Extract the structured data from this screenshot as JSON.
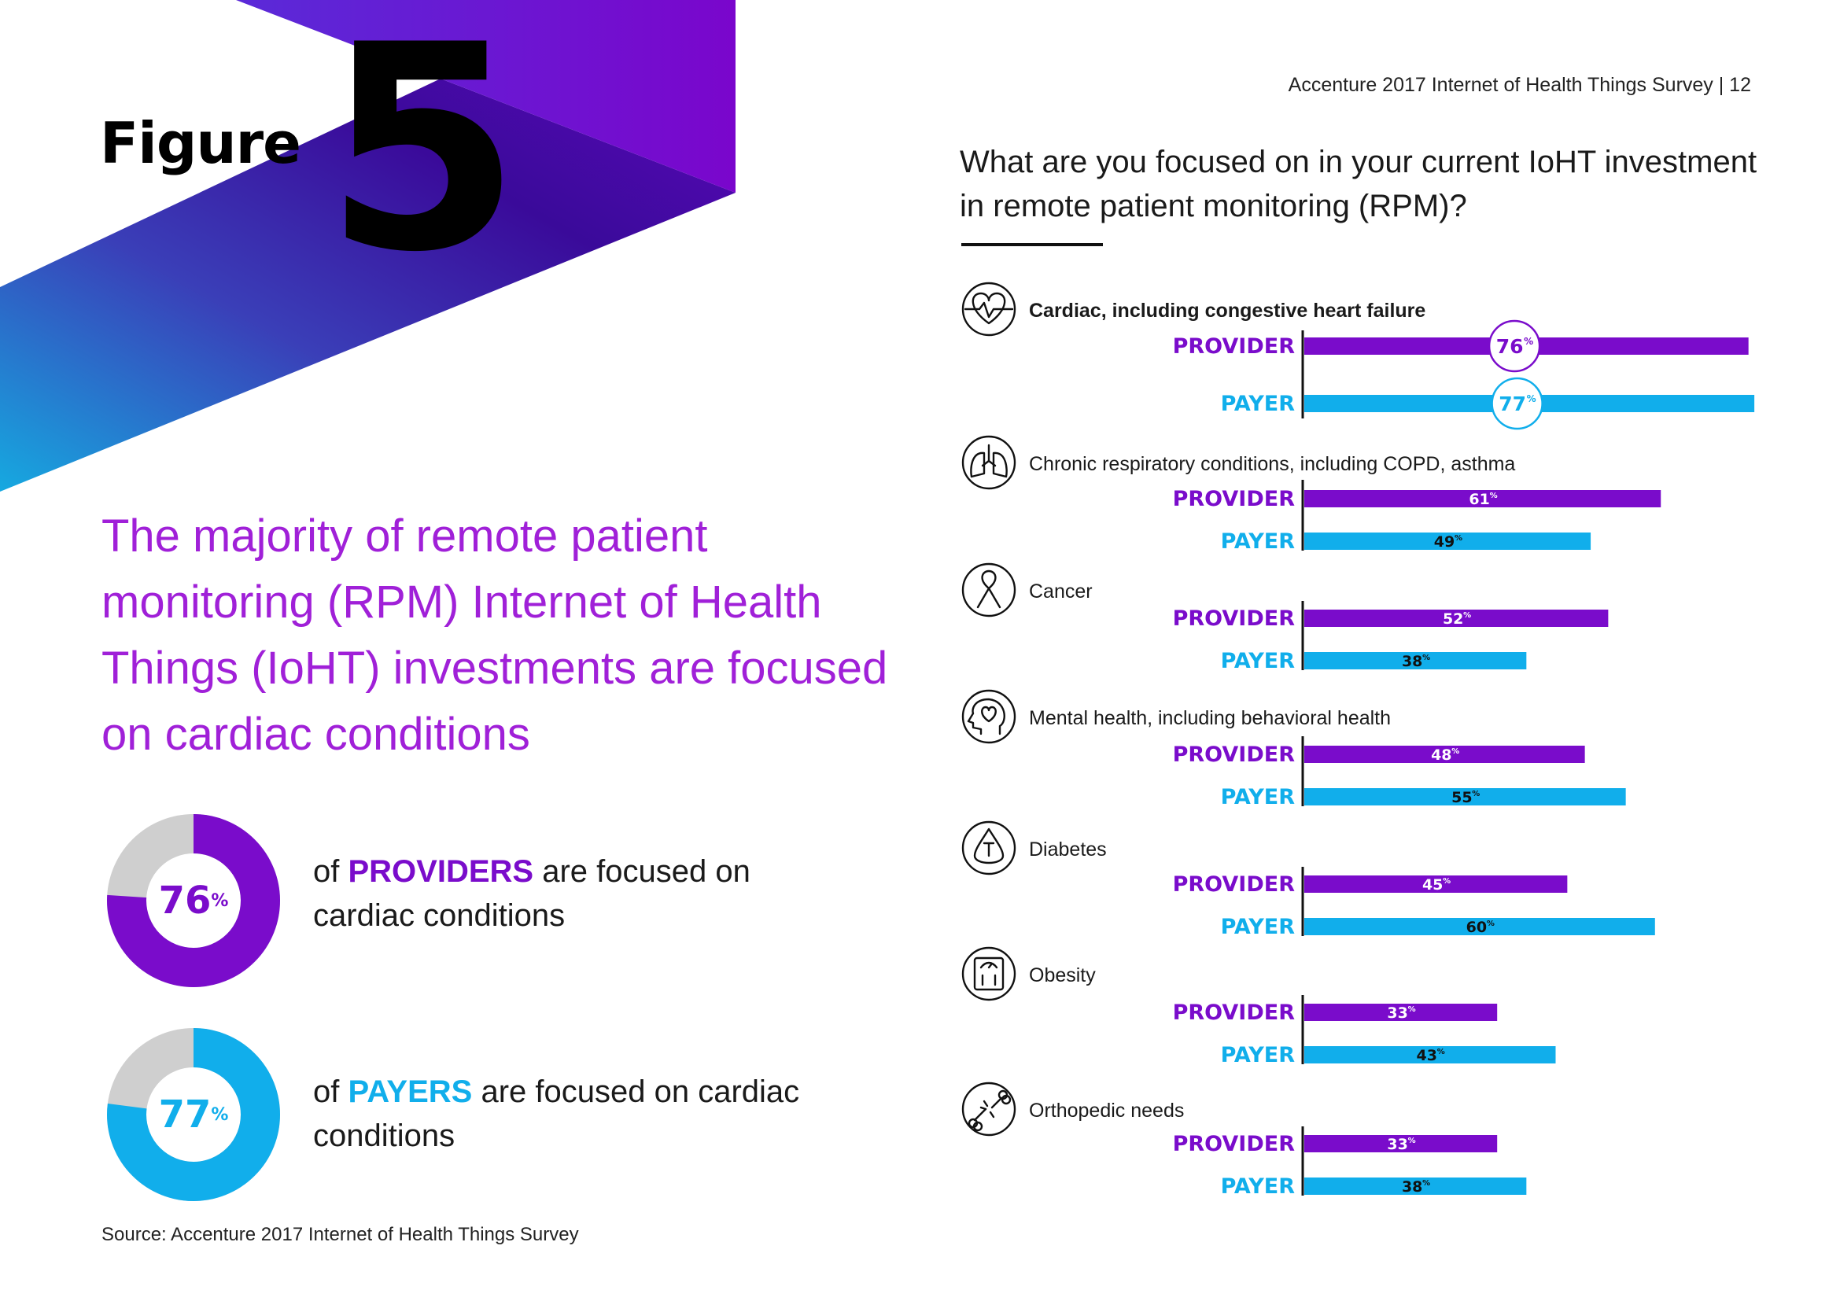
{
  "header_ref": "Accenture 2017 Internet of Health Things Survey | 12",
  "figure": {
    "word": "Figure",
    "number": "5"
  },
  "question": "What are you focused on in your current IoHT investment in remote patient monitoring (RPM)?",
  "headline": "The majority of remote patient monitoring (RPM) Internet of Health Things (IoHT) investments are focused on cardiac conditions",
  "stats": [
    {
      "value": "76",
      "unit": "%",
      "pre": "of ",
      "strong": "PROVIDERS",
      "post": " are focused on cardiac conditions",
      "fraction": 0.76,
      "color": "#7a0ccb"
    },
    {
      "value": "77",
      "unit": "%",
      "pre": "of ",
      "strong": "PAYERS",
      "post": " are focused on cardiac conditions",
      "fraction": 0.77,
      "color": "#11aeeb"
    }
  ],
  "source": "Source: Accenture 2017 Internet of Health Things Survey",
  "colors": {
    "provider": "#7a0ccb",
    "payer": "#11aeeb",
    "ring_rest": "#cfcfcf",
    "headline": "#a020d8"
  },
  "chart_data": {
    "type": "bar",
    "orientation": "horizontal",
    "title": "What are you focused on in your current IoHT investment in remote patient monitoring (RPM)?",
    "unit": "%",
    "xlim": [
      0,
      100
    ],
    "series_names": [
      "PROVIDER",
      "PAYER"
    ],
    "categories": [
      {
        "label": "Cardiac, including congestive heart failure",
        "icon": "heart-icon",
        "highlight": true,
        "provider": 76,
        "payer": 77
      },
      {
        "label": "Chronic respiratory conditions, including COPD, asthma",
        "icon": "lungs-icon",
        "highlight": false,
        "provider": 61,
        "payer": 49
      },
      {
        "label": "Cancer",
        "icon": "ribbon-icon",
        "highlight": false,
        "provider": 52,
        "payer": 38
      },
      {
        "label": "Mental health, including behavioral health",
        "icon": "head-heart-icon",
        "highlight": false,
        "provider": 48,
        "payer": 55
      },
      {
        "label": "Diabetes",
        "icon": "blood-drop-icon",
        "highlight": false,
        "provider": 45,
        "payer": 60
      },
      {
        "label": "Obesity",
        "icon": "scale-icon",
        "highlight": false,
        "provider": 33,
        "payer": 43
      },
      {
        "label": "Orthopedic needs",
        "icon": "bone-icon",
        "highlight": false,
        "provider": 33,
        "payer": 38
      }
    ]
  }
}
